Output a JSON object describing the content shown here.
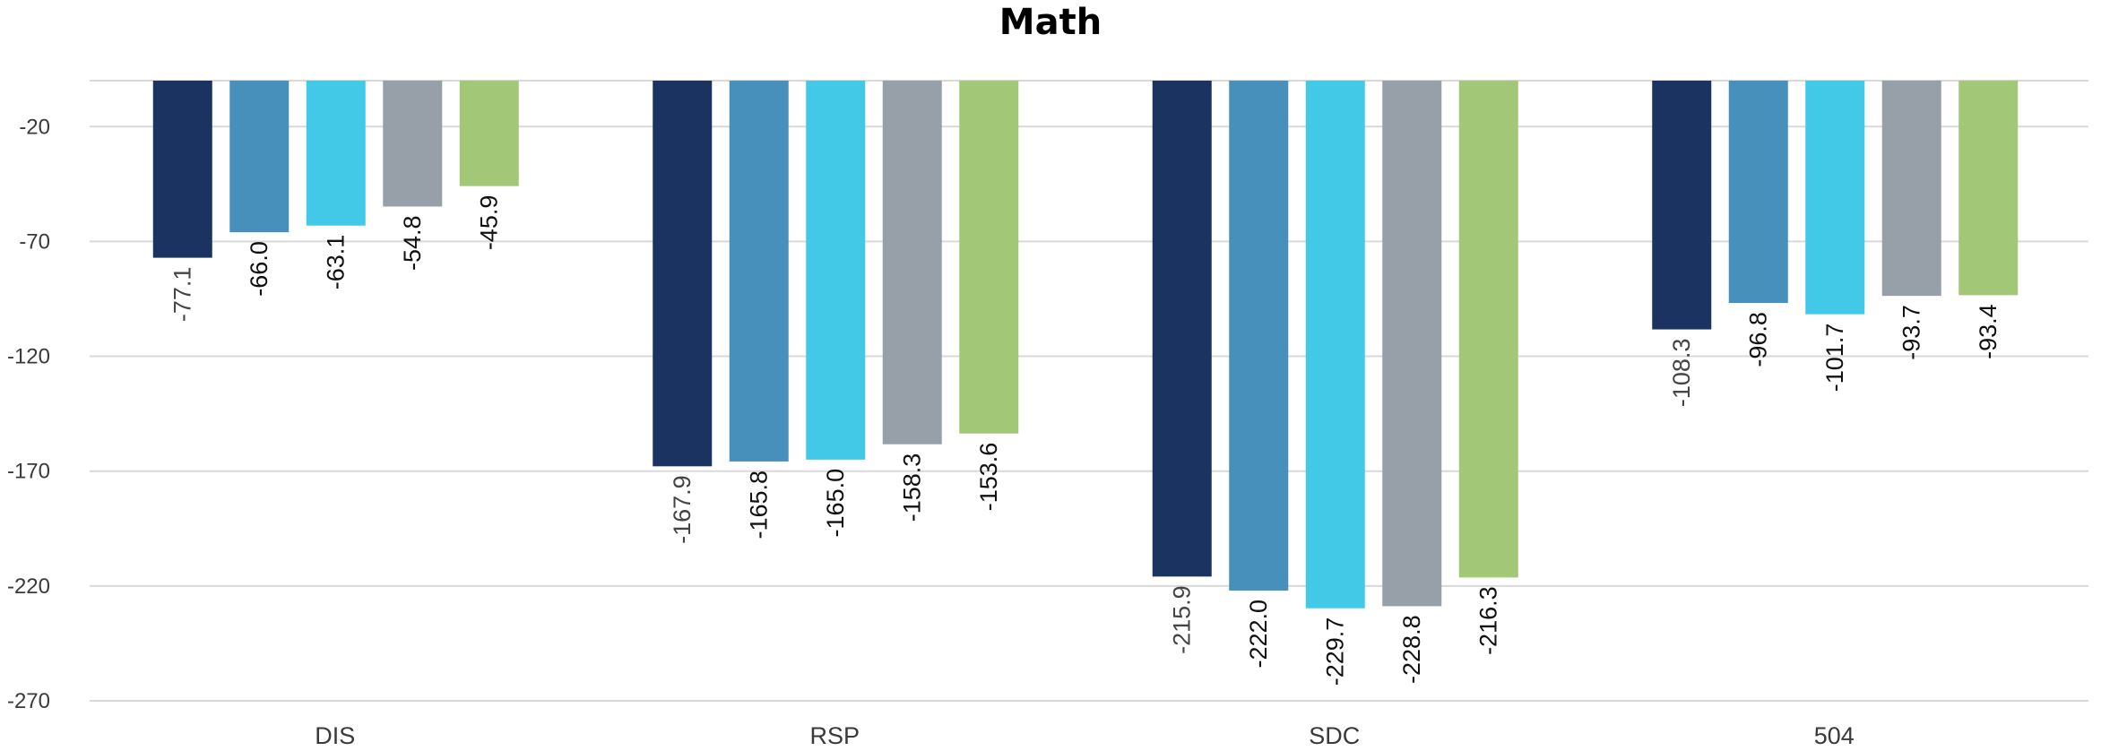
{
  "chart_data": {
    "type": "bar",
    "title": "Math",
    "xlabel": "",
    "ylabel": "",
    "categories": [
      "DIS",
      "RSP",
      "SDC",
      "504"
    ],
    "yticks": [
      -20,
      -70,
      -120,
      -170,
      -220,
      -270
    ],
    "ylim": [
      -270,
      0
    ],
    "grid": true,
    "series": [
      {
        "color": "#1b3360",
        "values": [
          -77.1,
          -167.9,
          -215.9,
          -108.3
        ]
      },
      {
        "color": "#4690bb",
        "values": [
          -66.0,
          -165.8,
          -222.0,
          -96.8
        ]
      },
      {
        "color": "#43c9e8",
        "values": [
          -63.1,
          -165.0,
          -229.7,
          -101.7
        ]
      },
      {
        "color": "#979fa8",
        "values": [
          -54.8,
          -158.3,
          -228.8,
          -93.7
        ]
      },
      {
        "color": "#a2c777",
        "values": [
          -45.9,
          -153.6,
          -216.3,
          -93.4
        ]
      }
    ],
    "value_labels": [
      [
        "-77.1",
        "-167.9",
        "-215.9",
        "-108.3"
      ],
      [
        "-66.0",
        "-165.8",
        "-222.0",
        "-96.8"
      ],
      [
        "-63.1",
        "-165.0",
        "-229.7",
        "-101.7"
      ],
      [
        "-54.8",
        "-158.3",
        "-228.8",
        "-93.7"
      ],
      [
        "-45.9",
        "-153.6",
        "-216.3",
        "-93.4"
      ]
    ]
  }
}
